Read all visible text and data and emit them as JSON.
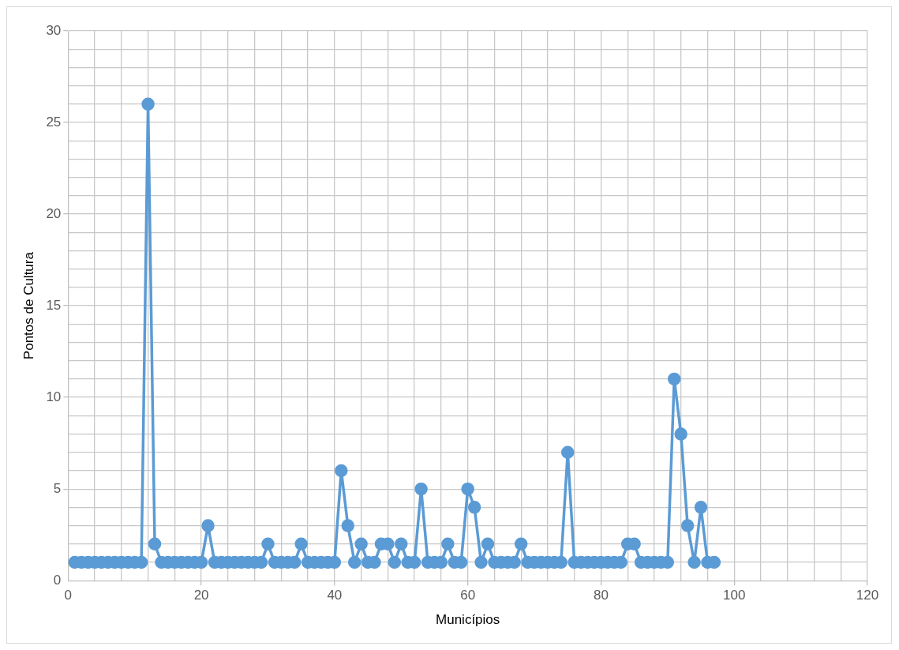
{
  "chart_data": {
    "type": "line",
    "xlabel": "Municípios",
    "ylabel": "Pontos de Cultura",
    "x": [
      1,
      2,
      3,
      4,
      5,
      6,
      7,
      8,
      9,
      10,
      11,
      12,
      13,
      14,
      15,
      16,
      17,
      18,
      19,
      20,
      21,
      22,
      23,
      24,
      25,
      26,
      27,
      28,
      29,
      30,
      31,
      32,
      33,
      34,
      35,
      36,
      37,
      38,
      39,
      40,
      41,
      42,
      43,
      44,
      45,
      46,
      47,
      48,
      49,
      50,
      51,
      52,
      53,
      54,
      55,
      56,
      57,
      58,
      59,
      60,
      61,
      62,
      63,
      64,
      65,
      66,
      67,
      68,
      69,
      70,
      71,
      72,
      73,
      74,
      75,
      76,
      77,
      78,
      79,
      80,
      81,
      82,
      83,
      84,
      85,
      86,
      87,
      88,
      89,
      90,
      91,
      92,
      93,
      94,
      95,
      96,
      97
    ],
    "series": [
      {
        "color": "#5b9bd5",
        "values": [
          1,
          1,
          1,
          1,
          1,
          1,
          1,
          1,
          1,
          1,
          1,
          26,
          2,
          1,
          1,
          1,
          1,
          1,
          1,
          1,
          3,
          1,
          1,
          1,
          1,
          1,
          1,
          1,
          1,
          2,
          1,
          1,
          1,
          1,
          2,
          1,
          1,
          1,
          1,
          1,
          6,
          3,
          1,
          2,
          1,
          1,
          2,
          2,
          1,
          2,
          1,
          1,
          5,
          1,
          1,
          1,
          2,
          1,
          1,
          5,
          4,
          1,
          2,
          1,
          1,
          1,
          1,
          2,
          1,
          1,
          1,
          1,
          1,
          1,
          7,
          1,
          1,
          1,
          1,
          1,
          1,
          1,
          1,
          2,
          2,
          1,
          1,
          1,
          1,
          1,
          11,
          8,
          3,
          1,
          4,
          1,
          1
        ]
      }
    ],
    "xlim": [
      0,
      120
    ],
    "xticks": [
      0,
      {
        "value": 4,
        "label": null
      },
      {
        "value": 8,
        "label": null
      },
      {
        "value": 12,
        "label": null
      },
      {
        "value": 16,
        "label": null
      },
      20,
      {
        "value": 24,
        "label": null
      },
      {
        "value": 28,
        "label": null
      },
      {
        "value": 32,
        "label": null
      },
      {
        "value": 36,
        "label": null
      },
      40,
      {
        "value": 44,
        "label": null
      },
      {
        "value": 48,
        "label": null
      },
      {
        "value": 52,
        "label": null
      },
      {
        "value": 56,
        "label": null
      },
      60,
      {
        "value": 64,
        "label": null
      },
      {
        "value": 68,
        "label": null
      },
      {
        "value": 72,
        "label": null
      },
      {
        "value": 76,
        "label": null
      },
      80,
      {
        "value": 84,
        "label": null
      },
      {
        "value": 88,
        "label": null
      },
      {
        "value": 92,
        "label": null
      },
      {
        "value": 96,
        "label": null
      },
      100,
      {
        "value": 104,
        "label": null
      },
      {
        "value": 108,
        "label": null
      },
      {
        "value": 112,
        "label": null
      },
      {
        "value": 116,
        "label": null
      },
      120
    ],
    "ylim": [
      0,
      30
    ],
    "yticks": [
      0,
      {
        "value": 1,
        "label": null
      },
      {
        "value": 2,
        "label": null
      },
      {
        "value": 3,
        "label": null
      },
      {
        "value": 4,
        "label": null
      },
      5,
      {
        "value": 6,
        "label": null
      },
      {
        "value": 7,
        "label": null
      },
      {
        "value": 8,
        "label": null
      },
      {
        "value": 9,
        "label": null
      },
      10,
      {
        "value": 11,
        "label": null
      },
      {
        "value": 12,
        "label": null
      },
      {
        "value": 13,
        "label": null
      },
      {
        "value": 14,
        "label": null
      },
      15,
      {
        "value": 16,
        "label": null
      },
      {
        "value": 17,
        "label": null
      },
      {
        "value": 18,
        "label": null
      },
      {
        "value": 19,
        "label": null
      },
      20,
      {
        "value": 21,
        "label": null
      },
      {
        "value": 22,
        "label": null
      },
      {
        "value": 23,
        "label": null
      },
      {
        "value": 24,
        "label": null
      },
      25,
      {
        "value": 26,
        "label": null
      },
      {
        "value": 27,
        "label": null
      },
      {
        "value": 28,
        "label": null
      },
      {
        "value": 29,
        "label": null
      },
      30
    ],
    "grid": true,
    "marker": "circle",
    "line_style": "solid"
  }
}
